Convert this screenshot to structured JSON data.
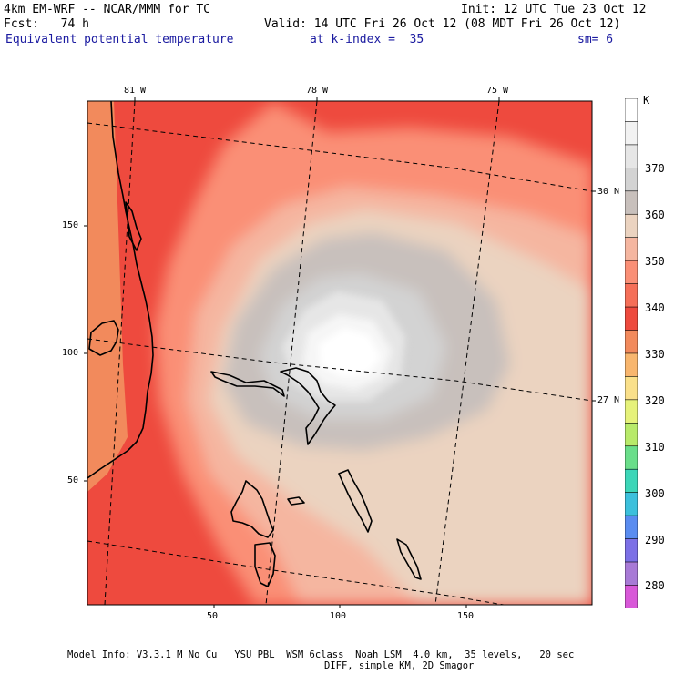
{
  "header": {
    "model": "4km EM-WRF -- NCAR/MMM for TC",
    "init": "Init: 12 UTC Tue 23 Oct 12",
    "fcst": "Fcst:   74 h",
    "valid": "Valid: 14 UTC Fri 26 Oct 12 (08 MDT Fri 26 Oct 12)",
    "field": "Equivalent potential temperature",
    "level": "at k-index =  35",
    "smoothing": "sm= 6"
  },
  "map": {
    "lon_labels": [
      "81 W",
      "78 W",
      "75 W"
    ],
    "lat_labels": [
      "30 N",
      "27 N"
    ],
    "x_ticks": [
      "50",
      "100",
      "150"
    ],
    "y_ticks": [
      "150",
      "100",
      "50"
    ]
  },
  "colorbar": {
    "unit": "K",
    "levels": [
      "370",
      "360",
      "350",
      "340",
      "330",
      "320",
      "310",
      "300",
      "290",
      "280"
    ],
    "colors": [
      "#ffffff",
      "#f2f2f2",
      "#e6e6e6",
      "#d3d3d3",
      "#c8c0bc",
      "#ebd3c0",
      "#f5b6a0",
      "#fa8f76",
      "#f56f58",
      "#ee4a3e",
      "#f28a5c",
      "#f8b66e",
      "#fae08a",
      "#e6f27a",
      "#b8ea6a",
      "#6ade8a",
      "#3cd6b8",
      "#3cc0dc",
      "#5a8cf0",
      "#7c70e6",
      "#a87ad6",
      "#d858d8"
    ]
  },
  "footer": {
    "line1": "Model Info: V3.3.1 M No Cu   YSU PBL  WSM 6class  Noah LSM  4.0 km,  35 levels,   20 sec",
    "line2": "DIFF, simple KM, 2D Smagor"
  }
}
